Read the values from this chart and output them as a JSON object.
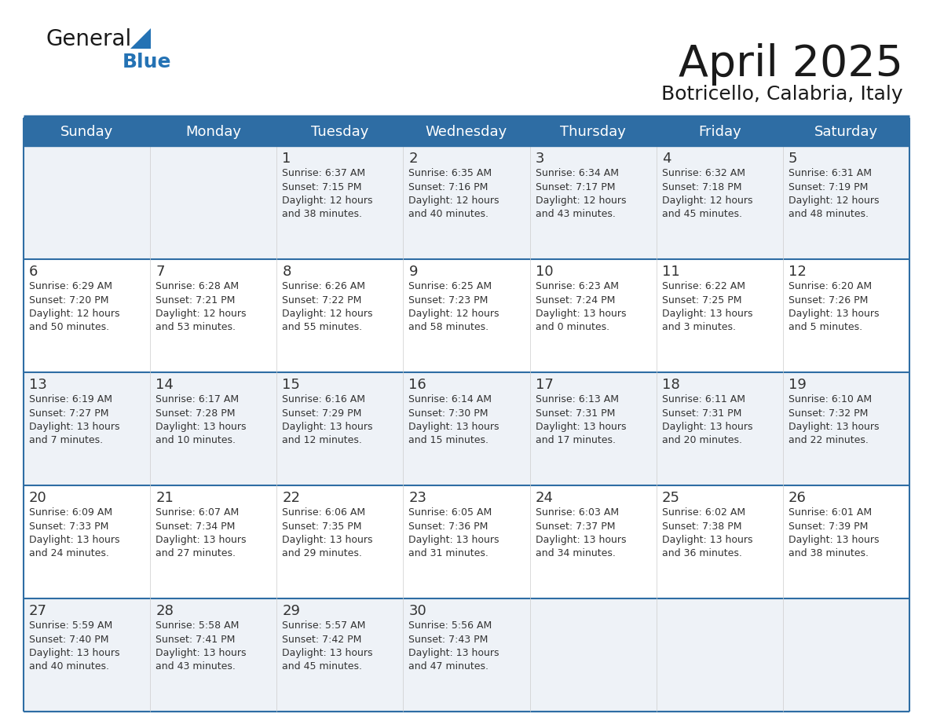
{
  "title": "April 2025",
  "subtitle": "Botricello, Calabria, Italy",
  "header_bg": "#2e6da4",
  "header_text": "#ffffff",
  "days": [
    "Sunday",
    "Monday",
    "Tuesday",
    "Wednesday",
    "Thursday",
    "Friday",
    "Saturday"
  ],
  "row_bg_even": "#eef2f7",
  "row_bg_odd": "#ffffff",
  "border_color": "#2e6da4",
  "text_color": "#333333",
  "cell_data": [
    [
      "",
      "",
      "1\nSunrise: 6:37 AM\nSunset: 7:15 PM\nDaylight: 12 hours\nand 38 minutes.",
      "2\nSunrise: 6:35 AM\nSunset: 7:16 PM\nDaylight: 12 hours\nand 40 minutes.",
      "3\nSunrise: 6:34 AM\nSunset: 7:17 PM\nDaylight: 12 hours\nand 43 minutes.",
      "4\nSunrise: 6:32 AM\nSunset: 7:18 PM\nDaylight: 12 hours\nand 45 minutes.",
      "5\nSunrise: 6:31 AM\nSunset: 7:19 PM\nDaylight: 12 hours\nand 48 minutes."
    ],
    [
      "6\nSunrise: 6:29 AM\nSunset: 7:20 PM\nDaylight: 12 hours\nand 50 minutes.",
      "7\nSunrise: 6:28 AM\nSunset: 7:21 PM\nDaylight: 12 hours\nand 53 minutes.",
      "8\nSunrise: 6:26 AM\nSunset: 7:22 PM\nDaylight: 12 hours\nand 55 minutes.",
      "9\nSunrise: 6:25 AM\nSunset: 7:23 PM\nDaylight: 12 hours\nand 58 minutes.",
      "10\nSunrise: 6:23 AM\nSunset: 7:24 PM\nDaylight: 13 hours\nand 0 minutes.",
      "11\nSunrise: 6:22 AM\nSunset: 7:25 PM\nDaylight: 13 hours\nand 3 minutes.",
      "12\nSunrise: 6:20 AM\nSunset: 7:26 PM\nDaylight: 13 hours\nand 5 minutes."
    ],
    [
      "13\nSunrise: 6:19 AM\nSunset: 7:27 PM\nDaylight: 13 hours\nand 7 minutes.",
      "14\nSunrise: 6:17 AM\nSunset: 7:28 PM\nDaylight: 13 hours\nand 10 minutes.",
      "15\nSunrise: 6:16 AM\nSunset: 7:29 PM\nDaylight: 13 hours\nand 12 minutes.",
      "16\nSunrise: 6:14 AM\nSunset: 7:30 PM\nDaylight: 13 hours\nand 15 minutes.",
      "17\nSunrise: 6:13 AM\nSunset: 7:31 PM\nDaylight: 13 hours\nand 17 minutes.",
      "18\nSunrise: 6:11 AM\nSunset: 7:31 PM\nDaylight: 13 hours\nand 20 minutes.",
      "19\nSunrise: 6:10 AM\nSunset: 7:32 PM\nDaylight: 13 hours\nand 22 minutes."
    ],
    [
      "20\nSunrise: 6:09 AM\nSunset: 7:33 PM\nDaylight: 13 hours\nand 24 minutes.",
      "21\nSunrise: 6:07 AM\nSunset: 7:34 PM\nDaylight: 13 hours\nand 27 minutes.",
      "22\nSunrise: 6:06 AM\nSunset: 7:35 PM\nDaylight: 13 hours\nand 29 minutes.",
      "23\nSunrise: 6:05 AM\nSunset: 7:36 PM\nDaylight: 13 hours\nand 31 minutes.",
      "24\nSunrise: 6:03 AM\nSunset: 7:37 PM\nDaylight: 13 hours\nand 34 minutes.",
      "25\nSunrise: 6:02 AM\nSunset: 7:38 PM\nDaylight: 13 hours\nand 36 minutes.",
      "26\nSunrise: 6:01 AM\nSunset: 7:39 PM\nDaylight: 13 hours\nand 38 minutes."
    ],
    [
      "27\nSunrise: 5:59 AM\nSunset: 7:40 PM\nDaylight: 13 hours\nand 40 minutes.",
      "28\nSunrise: 5:58 AM\nSunset: 7:41 PM\nDaylight: 13 hours\nand 43 minutes.",
      "29\nSunrise: 5:57 AM\nSunset: 7:42 PM\nDaylight: 13 hours\nand 45 minutes.",
      "30\nSunrise: 5:56 AM\nSunset: 7:43 PM\nDaylight: 13 hours\nand 47 minutes.",
      "",
      "",
      ""
    ]
  ],
  "logo_general_color": "#1a1a1a",
  "logo_blue_color": "#2472b4",
  "logo_triangle_color": "#2472b4",
  "fig_width": 11.88,
  "fig_height": 9.18,
  "dpi": 100
}
